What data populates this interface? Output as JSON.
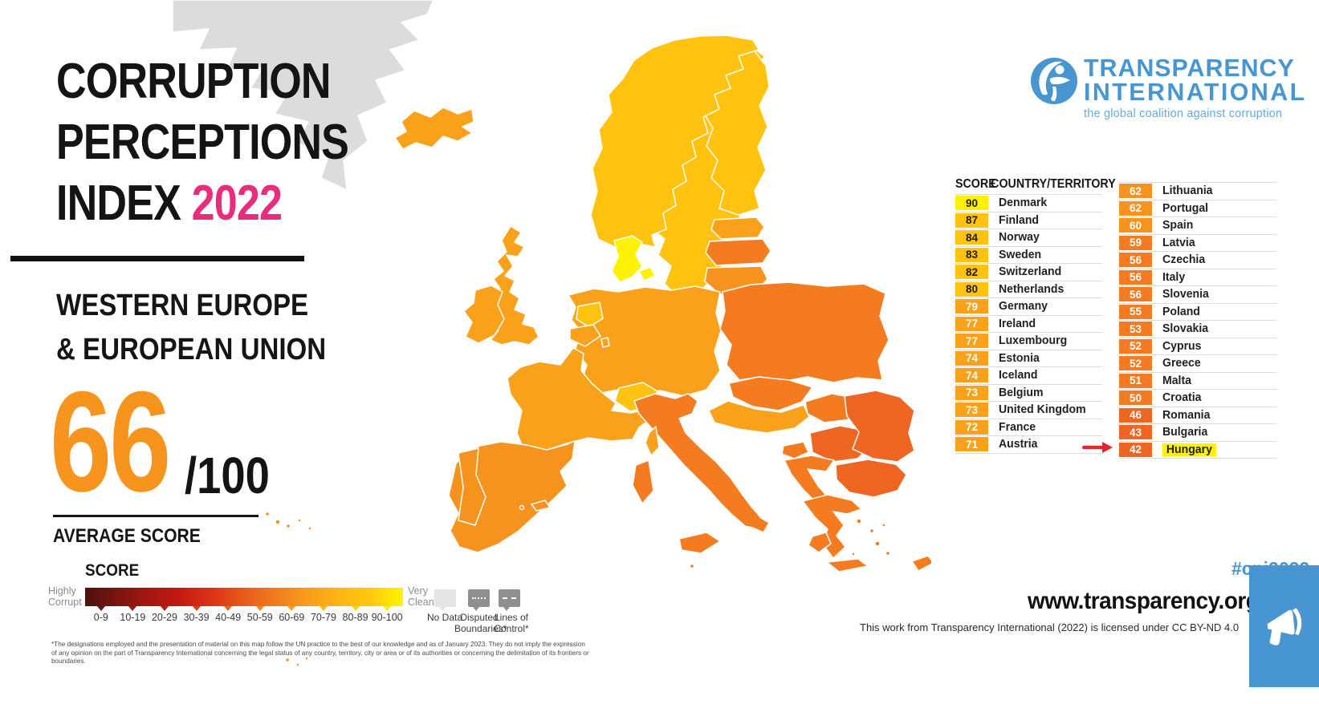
{
  "palette": {
    "b90": "#FFF200",
    "b80": "#FFC20E",
    "b70": "#F9A11B",
    "b60": "#F6921E",
    "b50": "#F47B20",
    "b40": "#EF6522",
    "no-data": "#E4E4E4",
    "gray-box": "#8F8F8F",
    "map-gray": "#DCDCDC",
    "pink": "#E82D7C",
    "orange66": "#F7941D",
    "blue": "#4796D2",
    "blue-light": "#66A9DA",
    "arrow-red": "#E8252B",
    "hl-yellow": "#FFF100",
    "divider": "#DCDCDC"
  },
  "title": {
    "line1": "CORRUPTION",
    "line2": "PERCEPTIONS",
    "line3": "INDEX",
    "year": "2022"
  },
  "region": {
    "line1": "WESTERN EUROPE",
    "line2": "& EUROPEAN UNION",
    "score": "66",
    "denominator": "/100",
    "average_label": "AVERAGE SCORE"
  },
  "legend": {
    "title": "SCORE",
    "left_label_1": "Highly",
    "left_label_2": "Corrupt",
    "right_label_1": "Very",
    "right_label_2": "Clean",
    "ranges": [
      "0-9",
      "10-19",
      "20-29",
      "30-39",
      "40-49",
      "50-59",
      "60-69",
      "70-79",
      "80-89",
      "90-100"
    ],
    "gradient": [
      "#4D120C",
      "#7A150F",
      "#A51710",
      "#C41A12",
      "#DB3415",
      "#E85C1B",
      "#F07C1E",
      "#F89C1C",
      "#FDB515",
      "#FFC90E",
      "#FFF200"
    ],
    "notch_colors": [
      "#6B130E",
      "#9C1610",
      "#C01911",
      "#D84419",
      "#EA681D",
      "#F2881E",
      "#F9A41A",
      "#FDBB12",
      "#FFD40A",
      "#FFF200"
    ],
    "no_data": "No Data",
    "disputed_1": "Disputed",
    "disputed_2": "Boundaries*",
    "lines_1": "Lines of",
    "lines_2": "Control*"
  },
  "footnote": "*The designations employed and the presentation of material on this map follow the UN practice to the best of our knowledge and as of January 2023. They do not imply the expression of any opinion on the part of Transparency International concerning the legal status of any country, territory, city or area or of its authorities or concerning the delimitation of its frontiers or boundaries.",
  "logo": {
    "name1": "TRANSPARENCY",
    "name2": "INTERNATIONAL",
    "tagline": "the global coalition against corruption"
  },
  "score_table": {
    "header_score": "SCORE",
    "header_country": "COUNTRY/TERRITORY",
    "highlight": "Hungary",
    "columns": [
      [
        {
          "score": 90,
          "country": "Denmark"
        },
        {
          "score": 87,
          "country": "Finland"
        },
        {
          "score": 84,
          "country": "Norway"
        },
        {
          "score": 83,
          "country": "Sweden"
        },
        {
          "score": 82,
          "country": "Switzerland"
        },
        {
          "score": 80,
          "country": "Netherlands"
        },
        {
          "score": 79,
          "country": "Germany"
        },
        {
          "score": 77,
          "country": "Ireland"
        },
        {
          "score": 77,
          "country": "Luxembourg"
        },
        {
          "score": 74,
          "country": "Estonia"
        },
        {
          "score": 74,
          "country": "Iceland"
        },
        {
          "score": 73,
          "country": "Belgium"
        },
        {
          "score": 73,
          "country": "United Kingdom"
        },
        {
          "score": 72,
          "country": "France"
        },
        {
          "score": 71,
          "country": "Austria"
        }
      ],
      [
        {
          "score": 62,
          "country": "Lithuania"
        },
        {
          "score": 62,
          "country": "Portugal"
        },
        {
          "score": 60,
          "country": "Spain"
        },
        {
          "score": 59,
          "country": "Latvia"
        },
        {
          "score": 56,
          "country": "Czechia"
        },
        {
          "score": 56,
          "country": "Italy"
        },
        {
          "score": 56,
          "country": "Slovenia"
        },
        {
          "score": 55,
          "country": "Poland"
        },
        {
          "score": 53,
          "country": "Slovakia"
        },
        {
          "score": 52,
          "country": "Cyprus"
        },
        {
          "score": 52,
          "country": "Greece"
        },
        {
          "score": 51,
          "country": "Malta"
        },
        {
          "score": 50,
          "country": "Croatia"
        },
        {
          "score": 46,
          "country": "Romania"
        },
        {
          "score": 43,
          "country": "Bulgaria"
        },
        {
          "score": 42,
          "country": "Hungary"
        }
      ]
    ]
  },
  "footer": {
    "hashtag": "#cpi2022",
    "website": "www.transparency.org",
    "license": "This work from Transparency International (2022) is licensed under CC BY-ND 4.0"
  }
}
